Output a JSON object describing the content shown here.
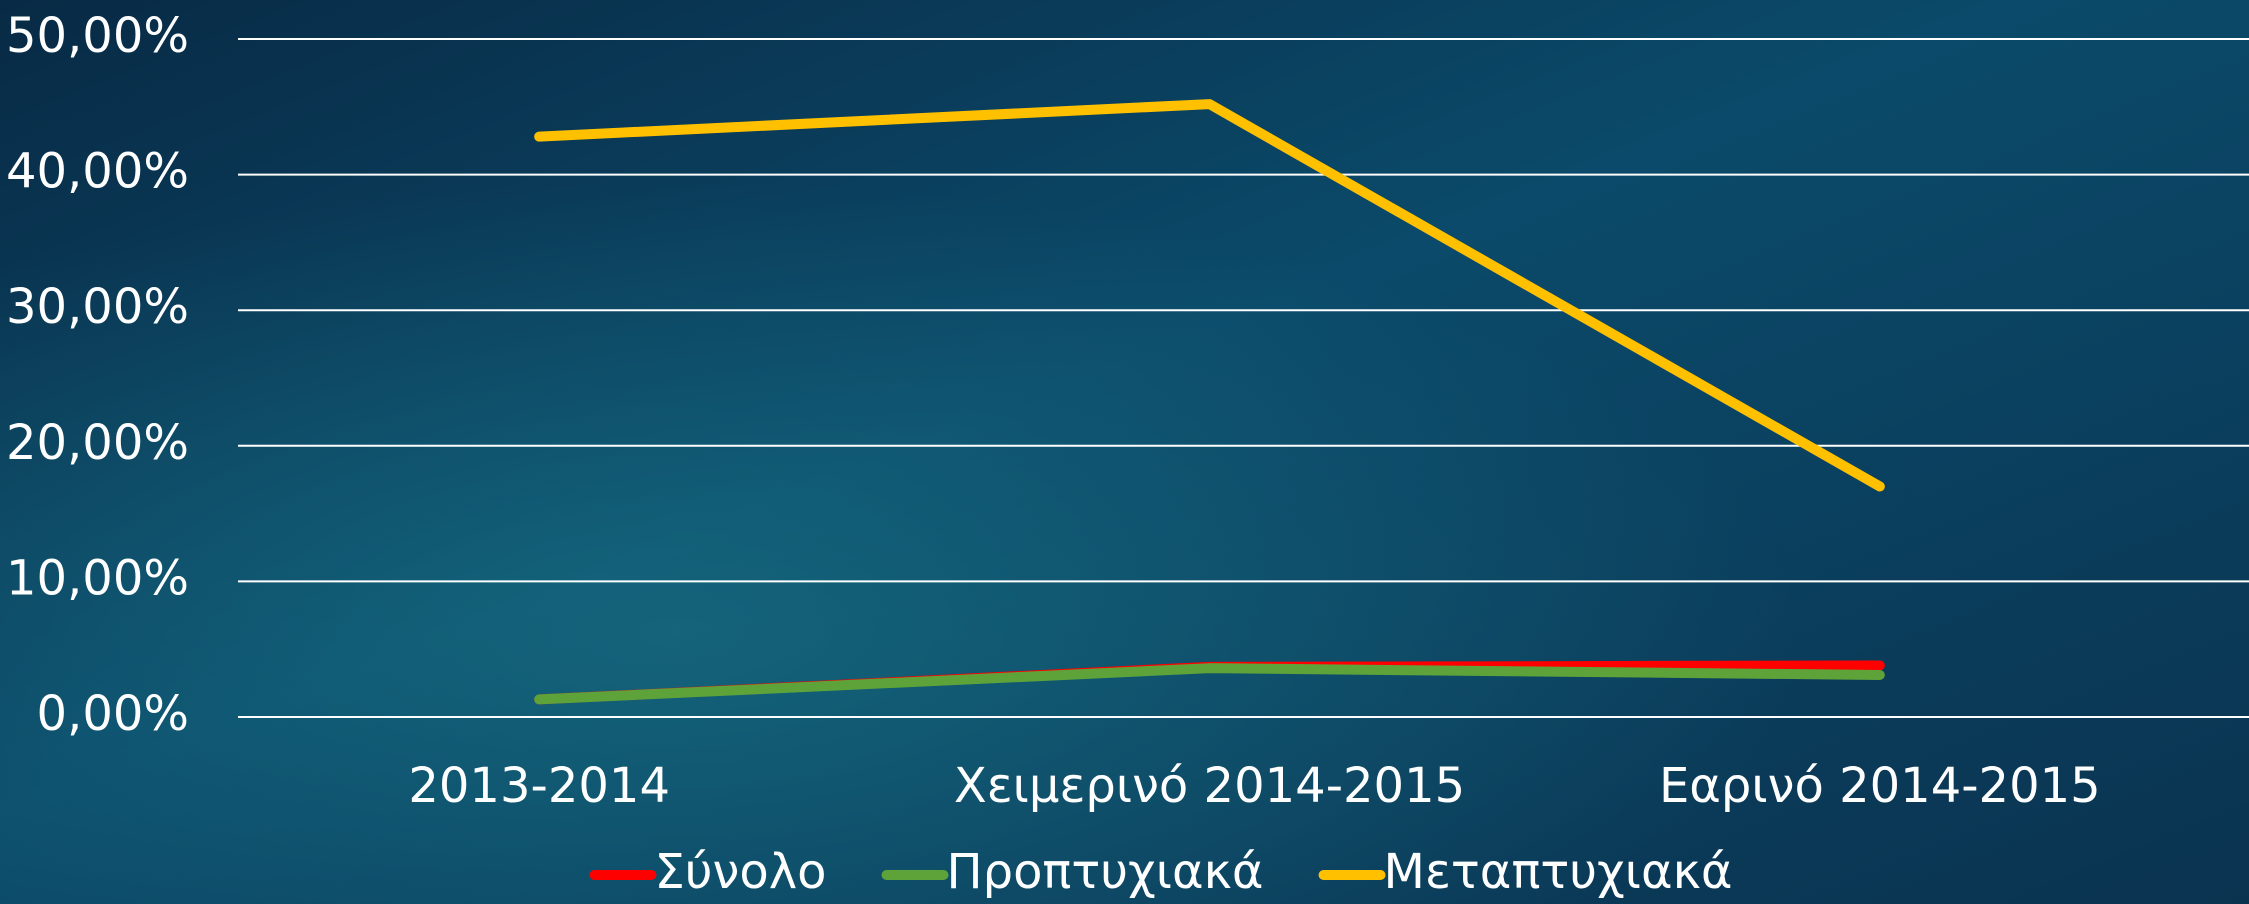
{
  "chart_data": {
    "type": "line",
    "categories": [
      "2013-2014",
      "Χειμερινό 2014-2015",
      "Εαρινό 2014-2015"
    ],
    "series": [
      {
        "name": "Σύνολο",
        "color": "#ff0000",
        "values": [
          1.3,
          3.7,
          3.8
        ]
      },
      {
        "name": "Προπτυχιακά",
        "color": "#5ea33a",
        "values": [
          1.3,
          3.6,
          3.1
        ]
      },
      {
        "name": "Μεταπτυχιακά",
        "color": "#ffc000",
        "values": [
          42.8,
          45.2,
          17.0
        ]
      }
    ],
    "ylim": [
      0,
      50
    ],
    "yticks": [
      {
        "value": 0,
        "label": "0,00%"
      },
      {
        "value": 10,
        "label": "10,00%"
      },
      {
        "value": 20,
        "label": "20,00%"
      },
      {
        "value": 30,
        "label": "30,00%"
      },
      {
        "value": 40,
        "label": "40,00%"
      },
      {
        "value": 50,
        "label": "50,00%"
      }
    ],
    "grid": true,
    "legend": "bottom"
  }
}
